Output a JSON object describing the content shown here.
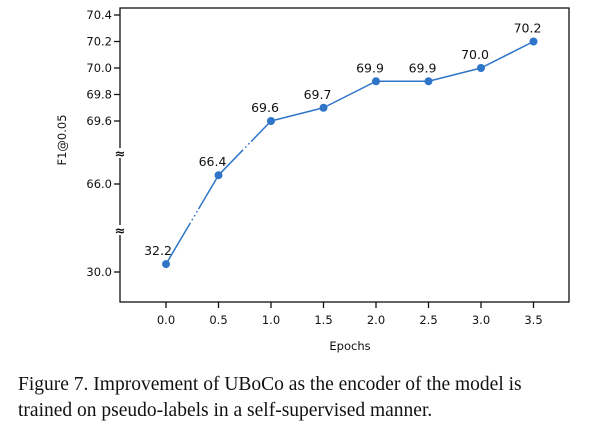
{
  "chart_data": {
    "type": "line",
    "title": "",
    "xlabel": "Epochs",
    "ylabel": "F1@0.05",
    "x": [
      0.0,
      0.5,
      1.0,
      1.5,
      2.0,
      2.5,
      3.0,
      3.5
    ],
    "series": [
      {
        "name": "UBoCo",
        "values": [
          32.2,
          66.4,
          69.6,
          69.7,
          69.9,
          69.9,
          70.0,
          70.2
        ],
        "data_labels": [
          "32.2",
          "66.4",
          "69.6",
          "69.7",
          "69.9",
          "69.9",
          "70.0",
          "70.2"
        ],
        "color": "#2e75c8"
      }
    ],
    "xticks": [
      "0.0",
      "0.5",
      "1.0",
      "1.5",
      "2.0",
      "2.5",
      "3.0",
      "3.5"
    ],
    "yticks": [
      "70.4",
      "70.2",
      "70.0",
      "69.8",
      "69.6",
      "66.0",
      "30.0"
    ],
    "ytick_values": [
      70.4,
      70.2,
      70.0,
      69.8,
      69.6,
      66.0,
      30.0
    ],
    "y_axis_breaks": "broken between 69.6–66.0 and 66.0–30.0",
    "broken_segments": [
      [
        0.0,
        0.5
      ],
      [
        0.5,
        1.0
      ]
    ],
    "xlim": [
      -0.45,
      3.85
    ],
    "grid": false,
    "legend": "none",
    "break_symbol": "≈"
  },
  "caption": {
    "line1": "Figure 7. Improvement of UBoCo as the encoder of the model is",
    "line2": "trained on pseudo-labels in a self-supervised manner."
  }
}
